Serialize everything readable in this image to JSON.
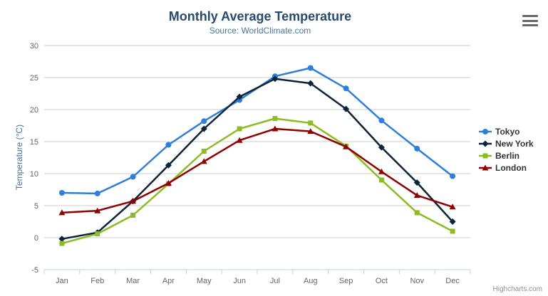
{
  "chart": {
    "title": "Monthly Average Temperature",
    "subtitle": "Source: WorldClimate.com",
    "credits": "Highcharts.com"
  },
  "chart_data": {
    "type": "line",
    "title": "Monthly Average Temperature",
    "subtitle": "Source: WorldClimate.com",
    "categories": [
      "Jan",
      "Feb",
      "Mar",
      "Apr",
      "May",
      "Jun",
      "Jul",
      "Aug",
      "Sep",
      "Oct",
      "Nov",
      "Dec"
    ],
    "series": [
      {
        "name": "Tokyo",
        "color": "#2f7ed8",
        "marker": "circle",
        "values": [
          7.0,
          6.9,
          9.5,
          14.5,
          18.2,
          21.5,
          25.2,
          26.5,
          23.3,
          18.3,
          13.9,
          9.6
        ]
      },
      {
        "name": "New York",
        "color": "#0d233a",
        "marker": "diamond",
        "values": [
          -0.2,
          0.8,
          5.7,
          11.3,
          17.0,
          22.0,
          24.8,
          24.1,
          20.1,
          14.1,
          8.6,
          2.5
        ]
      },
      {
        "name": "Berlin",
        "color": "#8bbc21",
        "marker": "square",
        "values": [
          -0.9,
          0.6,
          3.5,
          8.4,
          13.5,
          17.0,
          18.6,
          17.9,
          14.3,
          9.0,
          3.9,
          1.0
        ]
      },
      {
        "name": "London",
        "color": "#910000",
        "marker": "triangle",
        "values": [
          3.9,
          4.2,
          5.7,
          8.5,
          11.9,
          15.2,
          17.0,
          16.6,
          14.2,
          10.3,
          6.6,
          4.8
        ]
      }
    ],
    "xlabel": "",
    "ylabel": "Temperature (°C)",
    "ylim": [
      -5,
      30
    ],
    "yticks": [
      -5,
      0,
      5,
      10,
      15,
      20,
      25,
      30
    ],
    "grid": true,
    "legend_position": "right",
    "colors": {
      "grid_line": "#cccccc",
      "axis_line": "#c0d0e0",
      "tick": "#c0d0e0",
      "axis_label": "#666666",
      "title": "#274b6d",
      "subtitle": "#4d759e",
      "yaxis_title": "#4572a7",
      "credits": "#909090"
    }
  }
}
